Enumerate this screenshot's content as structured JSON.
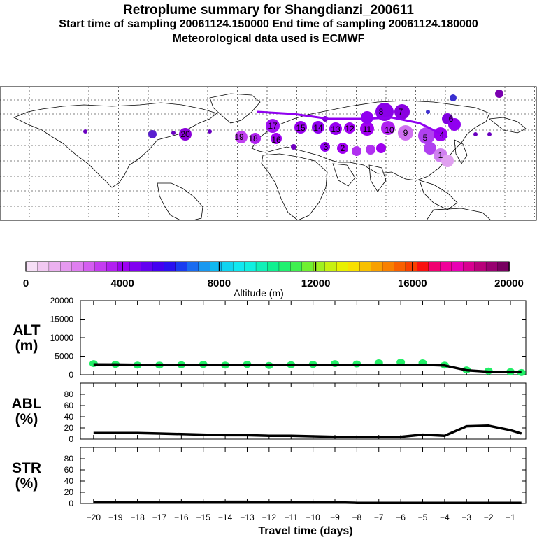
{
  "header": {
    "title": "Retroplume summary for Shangdianzi_200611",
    "line2": "Start time of sampling 20061124.150000     End time of sampling 20061124.180000",
    "line3": "Meteorological data used is ECMWF"
  },
  "colorbar": {
    "tick_labels": [
      "0",
      "4000",
      "8000",
      "12000",
      "16000",
      "20000"
    ],
    "label": "Altitude (m)"
  },
  "map": {
    "plume_labels": [
      "20",
      "19",
      "18",
      "17",
      "16",
      "15",
      "14",
      "13",
      "12",
      "11",
      "10",
      "9",
      "8",
      "7",
      "6",
      "5",
      "4",
      "3",
      "2",
      "1"
    ]
  },
  "chart_data": [
    {
      "type": "line",
      "panel": "ALT",
      "ylabel": "ALT (m)",
      "ylim": [
        0,
        20000
      ],
      "yticks": [
        "20000",
        "15000",
        "10000",
        "5000",
        "0"
      ],
      "x": [
        -20,
        -19,
        -18,
        -17,
        -16,
        -15,
        -14,
        -13,
        -12,
        -11,
        -10,
        -9,
        -8,
        -7,
        -6,
        -5,
        -4,
        -3,
        -2,
        -1,
        -0.5
      ],
      "values": [
        2800,
        2750,
        2700,
        2700,
        2700,
        2700,
        2700,
        2700,
        2700,
        2700,
        2700,
        2700,
        2700,
        2700,
        2700,
        2700,
        2500,
        1200,
        800,
        700,
        700
      ],
      "scatter_x": [
        -20,
        -19,
        -18,
        -17,
        -16,
        -15,
        -14,
        -13,
        -12,
        -11,
        -10,
        -9,
        -8,
        -7,
        -6,
        -5,
        -4,
        -3,
        -2,
        -1,
        -0.5
      ],
      "scatter_y": [
        3000,
        2800,
        2600,
        2600,
        2700,
        2800,
        2600,
        2800,
        2500,
        2700,
        2800,
        3000,
        2900,
        3200,
        3400,
        3200,
        2600,
        1300,
        1000,
        800,
        600
      ]
    },
    {
      "type": "line",
      "panel": "ABL",
      "ylabel": "ABL (%)",
      "ylim": [
        0,
        100
      ],
      "yticks": [
        "80",
        "60",
        "40",
        "20",
        "0"
      ],
      "x": [
        -20,
        -19,
        -18,
        -17,
        -16,
        -15,
        -14,
        -13,
        -12,
        -11,
        -10,
        -9,
        -8,
        -7,
        -6,
        -5,
        -4,
        -3,
        -2,
        -1,
        -0.5
      ],
      "values": [
        11,
        11,
        11,
        10,
        9,
        8,
        7,
        7,
        6,
        6,
        5,
        4,
        4,
        4,
        4,
        8,
        6,
        23,
        24,
        16,
        10
      ]
    },
    {
      "type": "line",
      "panel": "STR",
      "ylabel": "STR (%)",
      "ylim": [
        0,
        100
      ],
      "yticks": [
        "80",
        "60",
        "40",
        "20",
        "0"
      ],
      "x": [
        -20,
        -19,
        -18,
        -17,
        -16,
        -15,
        -14,
        -13,
        -12,
        -11,
        -10,
        -9,
        -8,
        -7,
        -6,
        -5,
        -4,
        -3,
        -2,
        -1,
        -0.5
      ],
      "values": [
        2,
        2,
        2,
        2,
        2,
        2,
        3,
        3,
        2,
        2,
        2,
        2,
        1,
        1,
        1,
        1,
        1,
        1,
        1,
        1,
        1
      ]
    }
  ],
  "xaxis": {
    "xlabel": "Travel time (days)",
    "ticks": [
      "−20",
      "−19",
      "−18",
      "−17",
      "−16",
      "−15",
      "−14",
      "−13",
      "−12",
      "−11",
      "−10",
      "−9",
      "−8",
      "−7",
      "−6",
      "−5",
      "−4",
      "−3",
      "−2",
      "−1"
    ]
  }
}
